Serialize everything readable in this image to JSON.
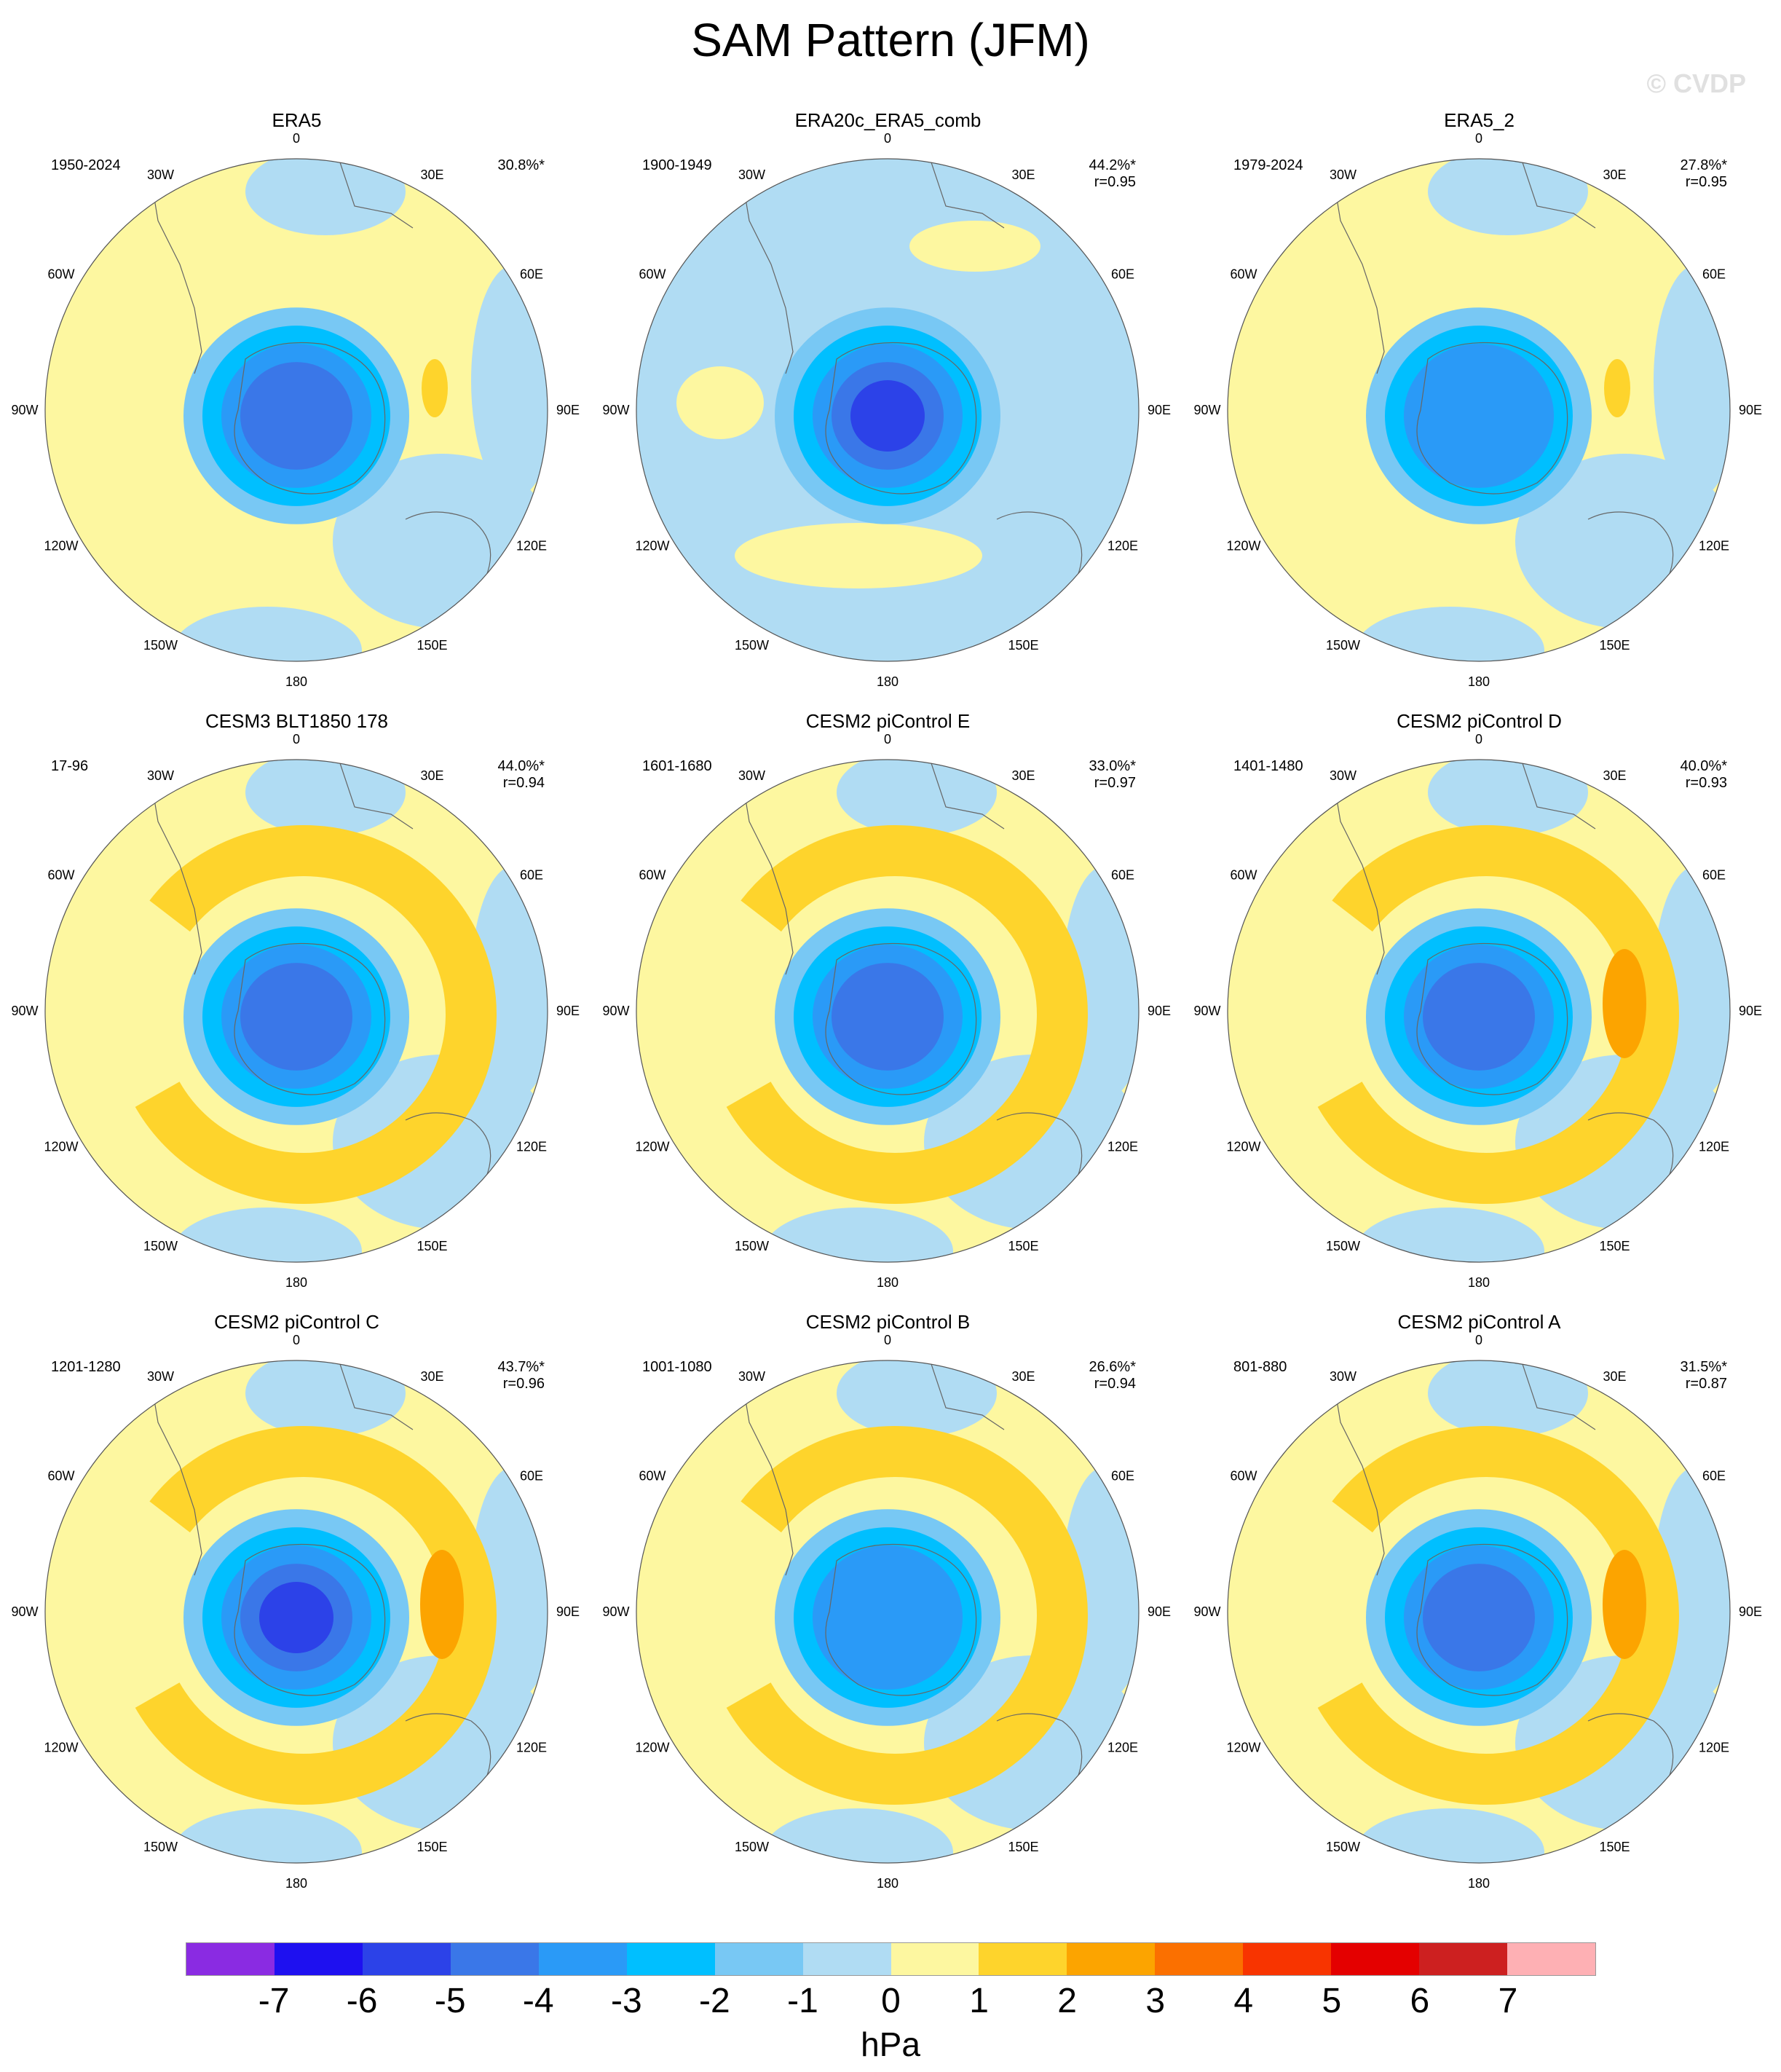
{
  "title": "SAM Pattern (JFM)",
  "watermark": "© CVDP",
  "longitude_labels": [
    "0",
    "30E",
    "60E",
    "90E",
    "120E",
    "150E",
    "180",
    "150W",
    "120W",
    "90W",
    "60W",
    "30W"
  ],
  "colorbar": {
    "colors": [
      "#8a2be2",
      "#1e10f0",
      "#2c42e8",
      "#3a77e8",
      "#2a9af7",
      "#00bfff",
      "#78c8f4",
      "#b0dcf3",
      "#fdf7a0",
      "#fed42c",
      "#fca400",
      "#fb7000",
      "#f83400",
      "#e40000",
      "#cd2020",
      "#feb0b4"
    ],
    "ticks": [
      "-7",
      "-6",
      "-5",
      "-4",
      "-3",
      "-2",
      "-1",
      "0",
      "1",
      "2",
      "3",
      "4",
      "5",
      "6",
      "7"
    ],
    "unit": "hPa"
  },
  "chart_data": [
    {
      "type": "heatmap",
      "title": "ERA5",
      "period": "1950-2024",
      "pct": "30.8%*",
      "r": "",
      "pattern": {
        "ring": "weak",
        "center": -4,
        "lobes": []
      }
    },
    {
      "type": "heatmap",
      "title": "ERA20c_ERA5_comb",
      "period": "1900-1949",
      "pct": "44.2%*",
      "r": "r=0.95",
      "pattern": {
        "ring": "negative",
        "center": -5,
        "lobes": []
      }
    },
    {
      "type": "heatmap",
      "title": "ERA5_2",
      "period": "1979-2024",
      "pct": "27.8%*",
      "r": "r=0.95",
      "pattern": {
        "ring": "weak",
        "center": -3,
        "lobes": []
      }
    },
    {
      "type": "heatmap",
      "title": "CESM3 BLT1850 178",
      "period": "17-96",
      "pct": "44.0%*",
      "r": "r=0.94",
      "pattern": {
        "ring": "positive",
        "center": -4,
        "lobes": []
      }
    },
    {
      "type": "heatmap",
      "title": "CESM2 piControl E",
      "period": "1601-1680",
      "pct": "33.0%*",
      "r": "r=0.97",
      "pattern": {
        "ring": "positive",
        "center": -4,
        "lobes": []
      }
    },
    {
      "type": "heatmap",
      "title": "CESM2 piControl D",
      "period": "1401-1480",
      "pct": "40.0%*",
      "r": "r=0.93",
      "pattern": {
        "ring": "positive",
        "center": -4,
        "lobes": [
          3
        ]
      }
    },
    {
      "type": "heatmap",
      "title": "CESM2 piControl C",
      "period": "1201-1280",
      "pct": "43.7%*",
      "r": "r=0.96",
      "pattern": {
        "ring": "positive",
        "center": -5,
        "lobes": [
          3
        ]
      }
    },
    {
      "type": "heatmap",
      "title": "CESM2 piControl B",
      "period": "1001-1080",
      "pct": "26.6%*",
      "r": "r=0.94",
      "pattern": {
        "ring": "positive",
        "center": -3,
        "lobes": []
      }
    },
    {
      "type": "heatmap",
      "title": "CESM2 piControl A",
      "period": "801-880",
      "pct": "31.5%*",
      "r": "r=0.87",
      "pattern": {
        "ring": "positive",
        "center": -4,
        "lobes": [
          3
        ]
      }
    }
  ]
}
